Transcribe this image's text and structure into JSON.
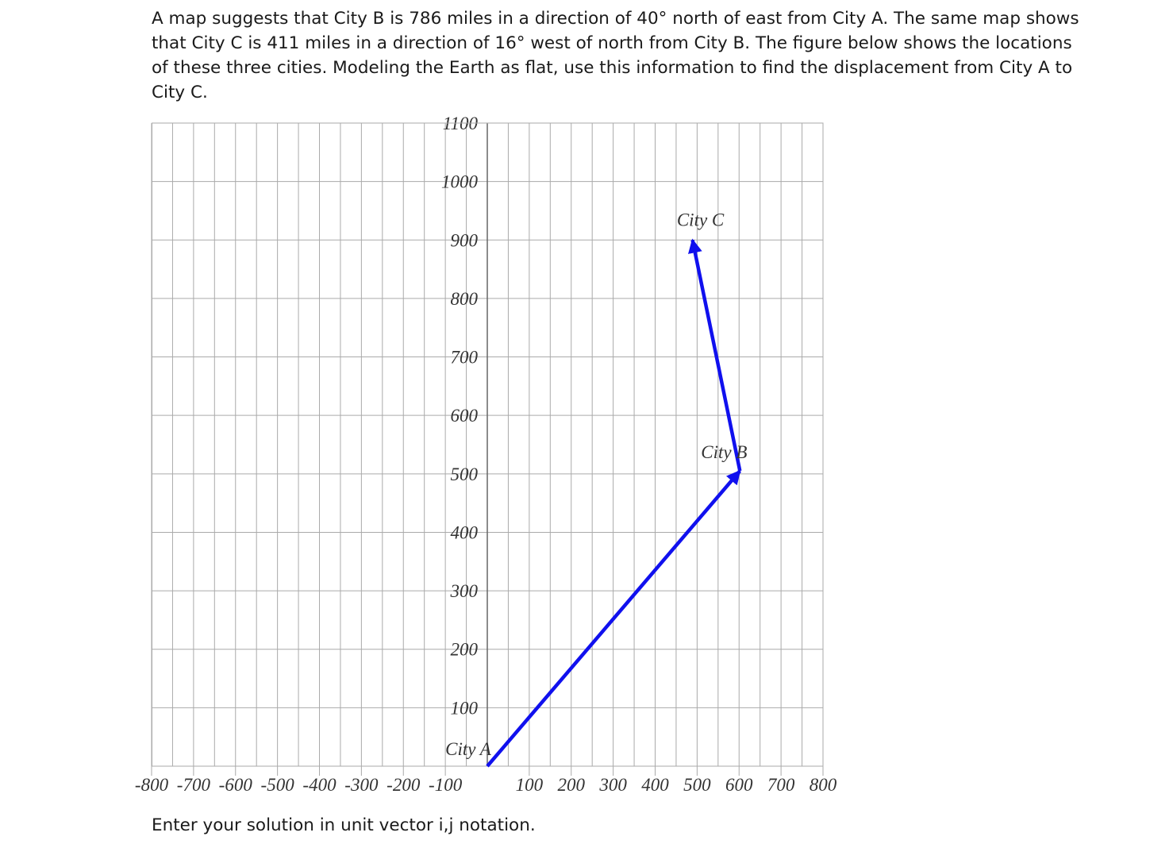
{
  "question": "A map suggests that City B is 786 miles in a direction of 40° north of east from City A. The same map shows that City C is 411 miles in a direction of 16° west of north from City B. The figure below shows the locations of these three cities. Modeling the Earth as flat, use this information to find the displacement from City A to City C.",
  "figure": {
    "xlim": [
      -800,
      800
    ],
    "ylim": [
      0,
      1100
    ],
    "xticks": [
      -800,
      -700,
      -600,
      -500,
      -400,
      -300,
      -200,
      -100,
      100,
      200,
      300,
      400,
      500,
      600,
      700,
      800
    ],
    "yticks": [
      100,
      200,
      300,
      400,
      500,
      600,
      700,
      800,
      900,
      1000,
      1100
    ],
    "color": "#1010ee",
    "points": [
      {
        "label": "City A",
        "x": 0,
        "y": 0
      },
      {
        "label": "City B",
        "x": 602,
        "y": 505
      },
      {
        "label": "City C",
        "x": 489,
        "y": 900
      }
    ]
  },
  "footer": "Enter your solution in unit vector i,j notation."
}
